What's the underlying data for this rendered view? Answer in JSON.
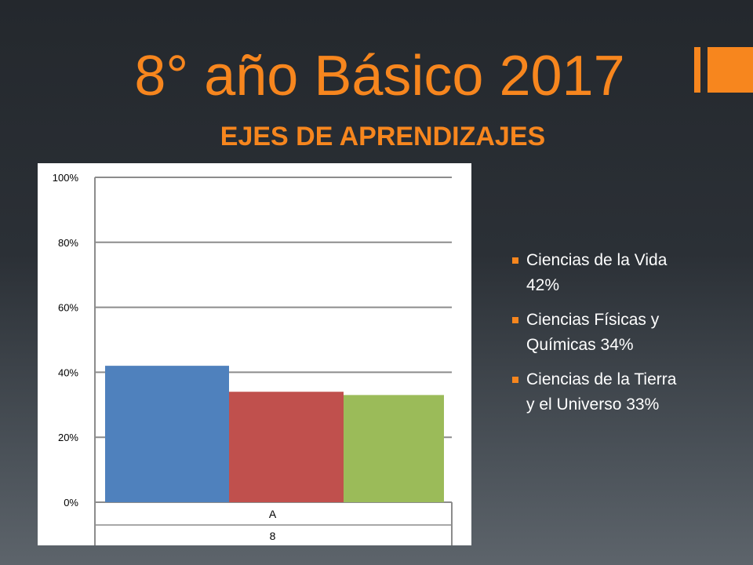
{
  "slide": {
    "title": "8° año Básico 2017",
    "subtitle": "EJES DE APRENDIZAJES"
  },
  "legend": {
    "items": [
      {
        "line1": "Ciencias de la Vida",
        "line2": "42%"
      },
      {
        "line1": "Ciencias Físicas y",
        "line2": "Químicas 34%"
      },
      {
        "line1": "Ciencias de la Tierra",
        "line2": "y el Universo 33%"
      }
    ]
  },
  "colors": {
    "accent": "#f7861e",
    "series": [
      "#4f81bd",
      "#c0504d",
      "#9bbb59"
    ]
  },
  "chart_data": {
    "type": "bar",
    "categories": [
      "A"
    ],
    "category_sublabels": [
      "8"
    ],
    "series": [
      {
        "values": [
          42
        ]
      },
      {
        "values": [
          34
        ]
      },
      {
        "values": [
          33
        ]
      }
    ],
    "yticks": [
      "0%",
      "20%",
      "40%",
      "60%",
      "80%",
      "100%"
    ],
    "ylim": [
      0,
      100
    ],
    "grid": true,
    "legend": "none"
  }
}
